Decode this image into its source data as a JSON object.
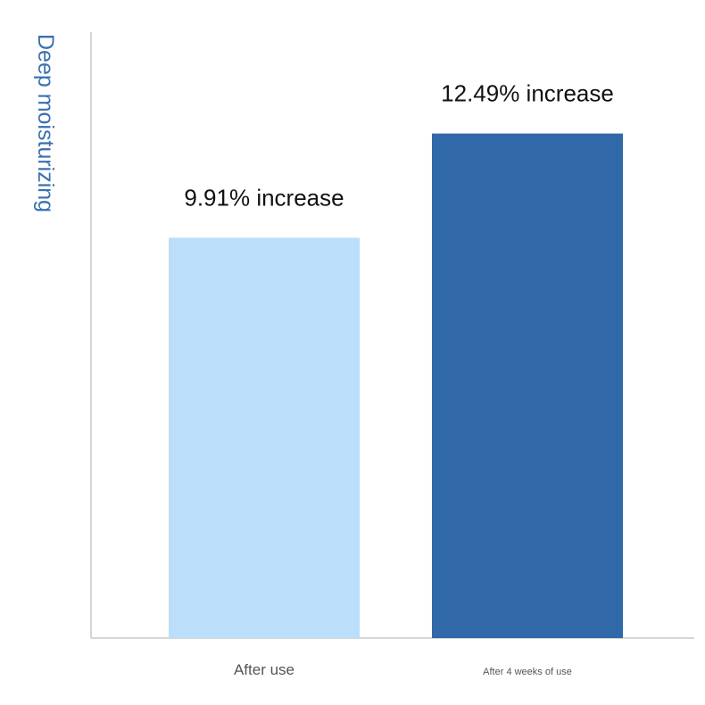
{
  "chart_data": {
    "type": "bar",
    "ylabel": "Deep moisturizing",
    "xlabel": "",
    "categories": [
      "After use",
      "After 4 weeks of use"
    ],
    "values": [
      9.91,
      12.49
    ],
    "data_labels": [
      "9.91% increase",
      "12.49% increase"
    ],
    "colors": [
      "#bbdefa",
      "#3068a8"
    ],
    "ylim": [
      0,
      15
    ],
    "grid": false,
    "legend": "none"
  },
  "style": {
    "axis_color": "#c8c8c8",
    "ylabel_color": "#3a6fb0"
  }
}
